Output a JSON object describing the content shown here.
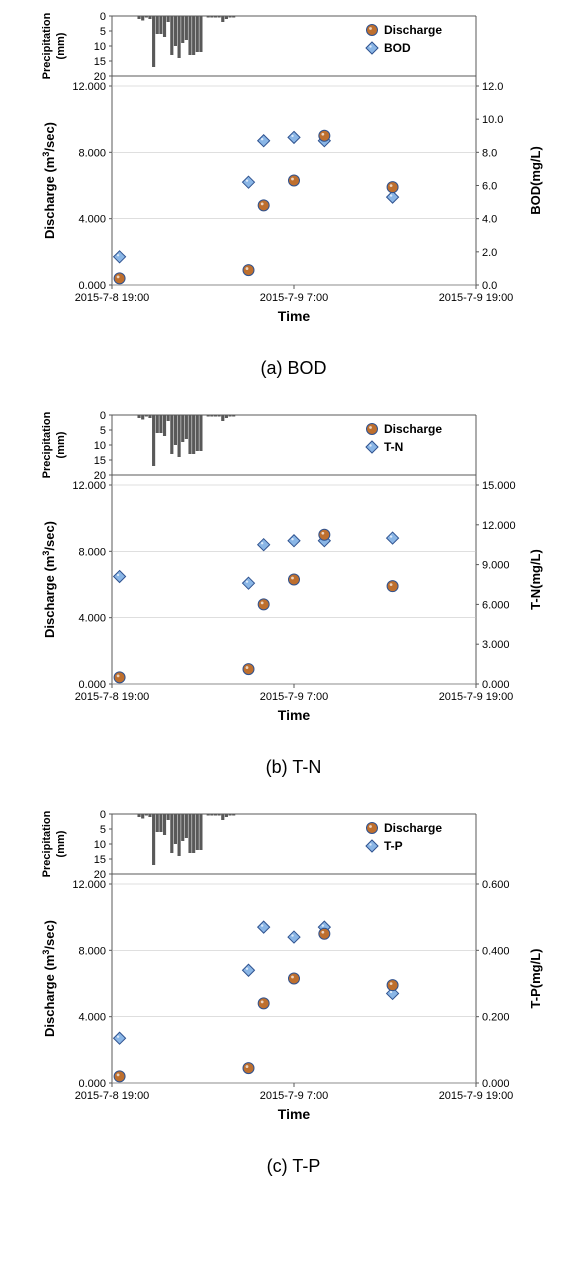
{
  "shared": {
    "precip_label": "Precipitation\n(mm)",
    "precip_ticks": [
      0,
      5,
      10,
      15,
      20
    ],
    "precip_values": [
      0,
      0,
      0,
      0,
      0,
      0,
      0,
      1,
      1.5,
      0.5,
      1,
      17,
      6,
      6,
      7,
      2,
      13,
      10,
      14,
      9,
      8,
      13,
      13,
      12,
      12,
      0,
      0.5,
      0.5,
      0.5,
      0.5,
      2,
      1,
      0.5,
      0.5,
      0,
      0,
      0,
      0,
      0,
      0,
      0,
      0,
      0,
      0,
      0,
      0,
      0,
      0,
      0,
      0,
      0,
      0,
      0,
      0,
      0,
      0,
      0,
      0,
      0,
      0,
      0,
      0,
      0,
      0,
      0,
      0,
      0,
      0,
      0,
      0,
      0,
      0,
      0,
      0,
      0,
      0,
      0,
      0,
      0,
      0,
      0,
      0,
      0,
      0,
      0,
      0,
      0,
      0,
      0,
      0,
      0,
      0,
      0,
      0,
      0,
      0,
      0,
      0,
      0,
      0
    ],
    "precip_color": "#595959",
    "discharge_label": "Discharge (m",
    "discharge_label_sup": "3",
    "discharge_label_after": "/sec)",
    "discharge_ticks": [
      0.0,
      4.0,
      8.0,
      12.0
    ],
    "discharge_tick_labels": [
      "0.000",
      "4.000",
      "8.000",
      "12.000"
    ],
    "x_label": "Time",
    "x_tick_labels": [
      "2015-7-8 19:00",
      "2015-7-9 7:00",
      "2015-7-9 19:00"
    ],
    "x_tick_pos": [
      0,
      48,
      96
    ],
    "x_range": 96,
    "discharge_series": {
      "label": "Discharge",
      "color_fill": "#be6f2e",
      "color_stroke": "#2f528f",
      "points": [
        {
          "x": 2,
          "y": 0.4
        },
        {
          "x": 36,
          "y": 0.9
        },
        {
          "x": 40,
          "y": 4.8
        },
        {
          "x": 48,
          "y": 6.3
        },
        {
          "x": 56,
          "y": 9.0
        },
        {
          "x": 74,
          "y": 5.9
        }
      ]
    },
    "bod_marker": {
      "fill": "#8ab6e6",
      "stroke": "#2f528f"
    },
    "plot_bg": "#ffffff",
    "grid_color": "#bfbfbf",
    "axis_color": "#595959",
    "label_fontsize": 13,
    "tick_fontsize": 11,
    "legend_fontsize": 12
  },
  "charts": [
    {
      "caption": "(a) BOD",
      "right_label": "BOD(mg/L)",
      "secondary_label": "BOD",
      "right_ticks": [
        0.0,
        2.0,
        4.0,
        6.0,
        8.0,
        10.0,
        12.0
      ],
      "right_tick_labels": [
        "0.0",
        "2.0",
        "4.0",
        "6.0",
        "8.0",
        "10.0",
        "12.0"
      ],
      "right_max": 12.0,
      "secondary_points": [
        {
          "x": 2,
          "y": 1.7
        },
        {
          "x": 36,
          "y": 6.2
        },
        {
          "x": 40,
          "y": 8.7
        },
        {
          "x": 48,
          "y": 8.9
        },
        {
          "x": 56,
          "y": 8.7
        },
        {
          "x": 74,
          "y": 5.3
        }
      ]
    },
    {
      "caption": "(b) T-N",
      "right_label": "T-N(mg/L)",
      "secondary_label": "T-N",
      "right_ticks": [
        0.0,
        3.0,
        6.0,
        9.0,
        12.0,
        15.0
      ],
      "right_tick_labels": [
        "0.000",
        "3.000",
        "6.000",
        "9.000",
        "12.000",
        "15.000"
      ],
      "right_max": 15.0,
      "secondary_points": [
        {
          "x": 2,
          "y": 8.1
        },
        {
          "x": 36,
          "y": 7.6
        },
        {
          "x": 40,
          "y": 10.5
        },
        {
          "x": 48,
          "y": 10.8
        },
        {
          "x": 56,
          "y": 10.8
        },
        {
          "x": 74,
          "y": 11.0
        }
      ]
    },
    {
      "caption": "(c) T-P",
      "right_label": "T-P(mg/L)",
      "secondary_label": "T-P",
      "right_ticks": [
        0.0,
        0.2,
        0.4,
        0.6
      ],
      "right_tick_labels": [
        "0.000",
        "0.200",
        "0.400",
        "0.600"
      ],
      "right_max": 0.6,
      "secondary_points": [
        {
          "x": 2,
          "y": 0.135
        },
        {
          "x": 36,
          "y": 0.34
        },
        {
          "x": 40,
          "y": 0.47
        },
        {
          "x": 48,
          "y": 0.44
        },
        {
          "x": 56,
          "y": 0.47
        },
        {
          "x": 74,
          "y": 0.27
        }
      ]
    }
  ]
}
